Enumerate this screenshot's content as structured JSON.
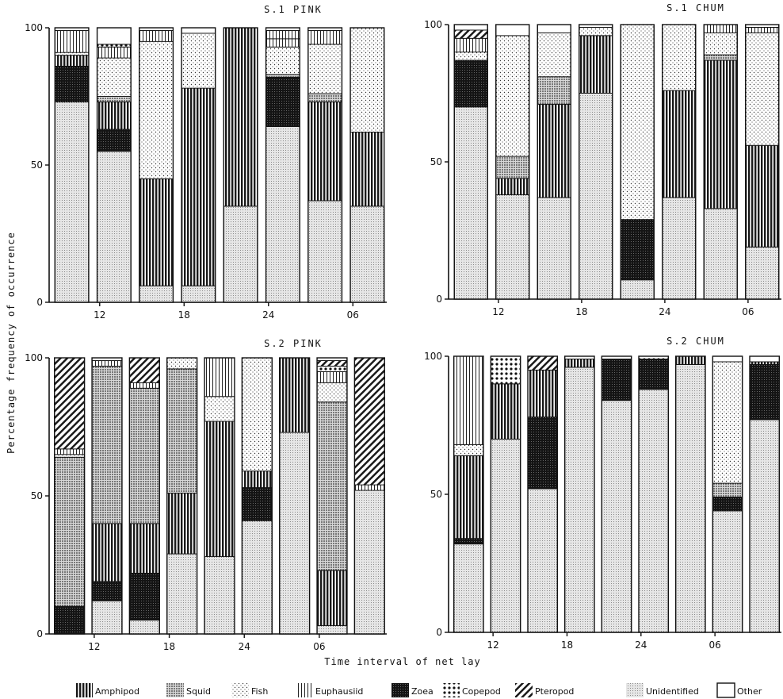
{
  "figure": {
    "ylabel": "Percentage frequency of occurrence",
    "xlabel": "Time interval of net lay"
  },
  "categories": [
    {
      "key": "amphipod",
      "label": "Amphipod",
      "color": "#2e2e2e"
    },
    {
      "key": "squid",
      "label": "Squid",
      "color": "#9a9a9a"
    },
    {
      "key": "fish",
      "label": "Fish",
      "color": "#ececec"
    },
    {
      "key": "euphausiid",
      "label": "Euphausiid",
      "color": "#d6d6d6"
    },
    {
      "key": "zoea",
      "label": "Zoea",
      "color": "#151515"
    },
    {
      "key": "copepod",
      "label": "Copepod",
      "color": "#f4f4f4"
    },
    {
      "key": "pteropod",
      "label": "Pteropod",
      "color": "#5e5e5e"
    },
    {
      "key": "unidentified",
      "label": "Unidentified",
      "color": "#cfcfcf"
    },
    {
      "key": "other",
      "label": "Other",
      "color": "#ffffff"
    }
  ],
  "chart_data": [
    {
      "type": "bar",
      "stacked": true,
      "title": "S.1 PINK",
      "xticks": [
        "12",
        "18",
        "24",
        "06"
      ],
      "ylim": [
        0,
        100
      ],
      "yticks": [
        "0",
        "50",
        "100"
      ],
      "bars": [
        {
          "unidentified": 73,
          "amphipod": 4,
          "zoea": 13,
          "euphausiid": 8,
          "fish": 1,
          "other": 1
        },
        {
          "unidentified": 55,
          "zoea": 8,
          "amphipod": 10,
          "fish": 14,
          "euphausiid": 4,
          "squid": 2,
          "copepod": 1,
          "other": 6
        },
        {
          "unidentified": 6,
          "amphipod": 39,
          "fish": 50,
          "euphausiid": 4,
          "other": 1
        },
        {
          "unidentified": 6,
          "amphipod": 72,
          "fish": 20,
          "other": 2
        },
        {
          "unidentified": 35,
          "amphipod": 65
        },
        {
          "unidentified": 64,
          "zoea": 18,
          "fish": 10,
          "euphausiid": 3,
          "squid": 1,
          "euphausiid2": 3,
          "other": 1
        },
        {
          "unidentified": 37,
          "amphipod": 36,
          "fish": 18,
          "euphausiid": 5,
          "squid": 3,
          "other": 1
        },
        {
          "unidentified": 35,
          "amphipod": 27,
          "fish": 38
        }
      ]
    },
    {
      "type": "bar",
      "stacked": true,
      "title": "S.1 CHUM",
      "xticks": [
        "12",
        "18",
        "24",
        "06"
      ],
      "ylim": [
        0,
        100
      ],
      "yticks": [
        "0",
        "50",
        "100"
      ],
      "bars": [
        {
          "unidentified": 70,
          "zoea": 17,
          "euphausiid": 5,
          "fish": 3,
          "pteropod": 3,
          "other": 2
        },
        {
          "unidentified": 38,
          "amphipod": 6,
          "squid": 8,
          "fish": 44,
          "other": 4
        },
        {
          "unidentified": 37,
          "amphipod": 34,
          "squid": 10,
          "fish": 16,
          "other": 3
        },
        {
          "unidentified": 75,
          "amphipod": 21,
          "fish": 3,
          "other": 1
        },
        {
          "unidentified": 7,
          "zoea": 22,
          "fish": 71
        },
        {
          "unidentified": 37,
          "amphipod": 39,
          "fish": 24
        },
        {
          "unidentified": 33,
          "amphipod": 54,
          "fish": 8,
          "euphausiid": 3,
          "squid": 2
        },
        {
          "unidentified": 19,
          "amphipod": 37,
          "fish": 41,
          "euphausiid": 2,
          "other": 1
        }
      ]
    },
    {
      "type": "bar",
      "stacked": true,
      "title": "S.2 PINK",
      "xticks": [
        "12",
        "18",
        "24",
        "06"
      ],
      "ylim": [
        0,
        100
      ],
      "yticks": [
        "0",
        "50",
        "100"
      ],
      "bars": [
        {
          "zoea": 10,
          "squid": 54,
          "euphausiid": 2,
          "fish": 1,
          "pteropod": 33
        },
        {
          "unidentified": 12,
          "amphipod": 21,
          "squid": 57,
          "euphausiid": 2,
          "zoea": 7,
          "other": 1
        },
        {
          "unidentified": 5,
          "amphipod": 18,
          "squid": 49,
          "euphausiid": 2,
          "zoea": 17,
          "pteropod": 9
        },
        {
          "unidentified": 29,
          "amphipod": 22,
          "squid": 45,
          "fish": 4
        },
        {
          "unidentified": 28,
          "amphipod": 49,
          "fish": 9,
          "euphausiid": 14
        },
        {
          "unidentified": 41,
          "amphipod": 6,
          "fish": 41,
          "zoea": 12
        },
        {
          "unidentified": 73,
          "amphipod": 27
        },
        {
          "unidentified": 3,
          "amphipod": 20,
          "squid": 61,
          "fish": 7,
          "euphausiid": 4,
          "copepod": 2,
          "pteropod": 2,
          "other": 1
        },
        {
          "unidentified": 52,
          "pteropod": 46,
          "euphausiid": 2
        }
      ]
    },
    {
      "type": "bar",
      "stacked": true,
      "title": "S.2 CHUM",
      "xticks": [
        "12",
        "18",
        "24",
        "06"
      ],
      "ylim": [
        0,
        100
      ],
      "yticks": [
        "0",
        "50",
        "100"
      ],
      "bars": [
        {
          "unidentified": 32,
          "zoea": 2,
          "fish": 4,
          "euphausiid": 32,
          "amphipod": 30
        },
        {
          "unidentified": 70,
          "amphipod": 20,
          "copepod": 10
        },
        {
          "unidentified": 52,
          "amphipod": 17,
          "zoea": 26,
          "pteropod": 5
        },
        {
          "unidentified": 96,
          "amphipod": 3,
          "other": 1
        },
        {
          "unidentified": 84,
          "zoea": 15,
          "other": 1
        },
        {
          "unidentified": 88,
          "zoea": 11,
          "copepod": 1
        },
        {
          "unidentified": 97,
          "amphipod": 3
        },
        {
          "unidentified": 44,
          "zoea": 5,
          "fish": 44,
          "squid": 5,
          "other": 2
        },
        {
          "unidentified": 77,
          "zoea": 20,
          "amphipod": 1,
          "other": 2
        }
      ]
    }
  ]
}
